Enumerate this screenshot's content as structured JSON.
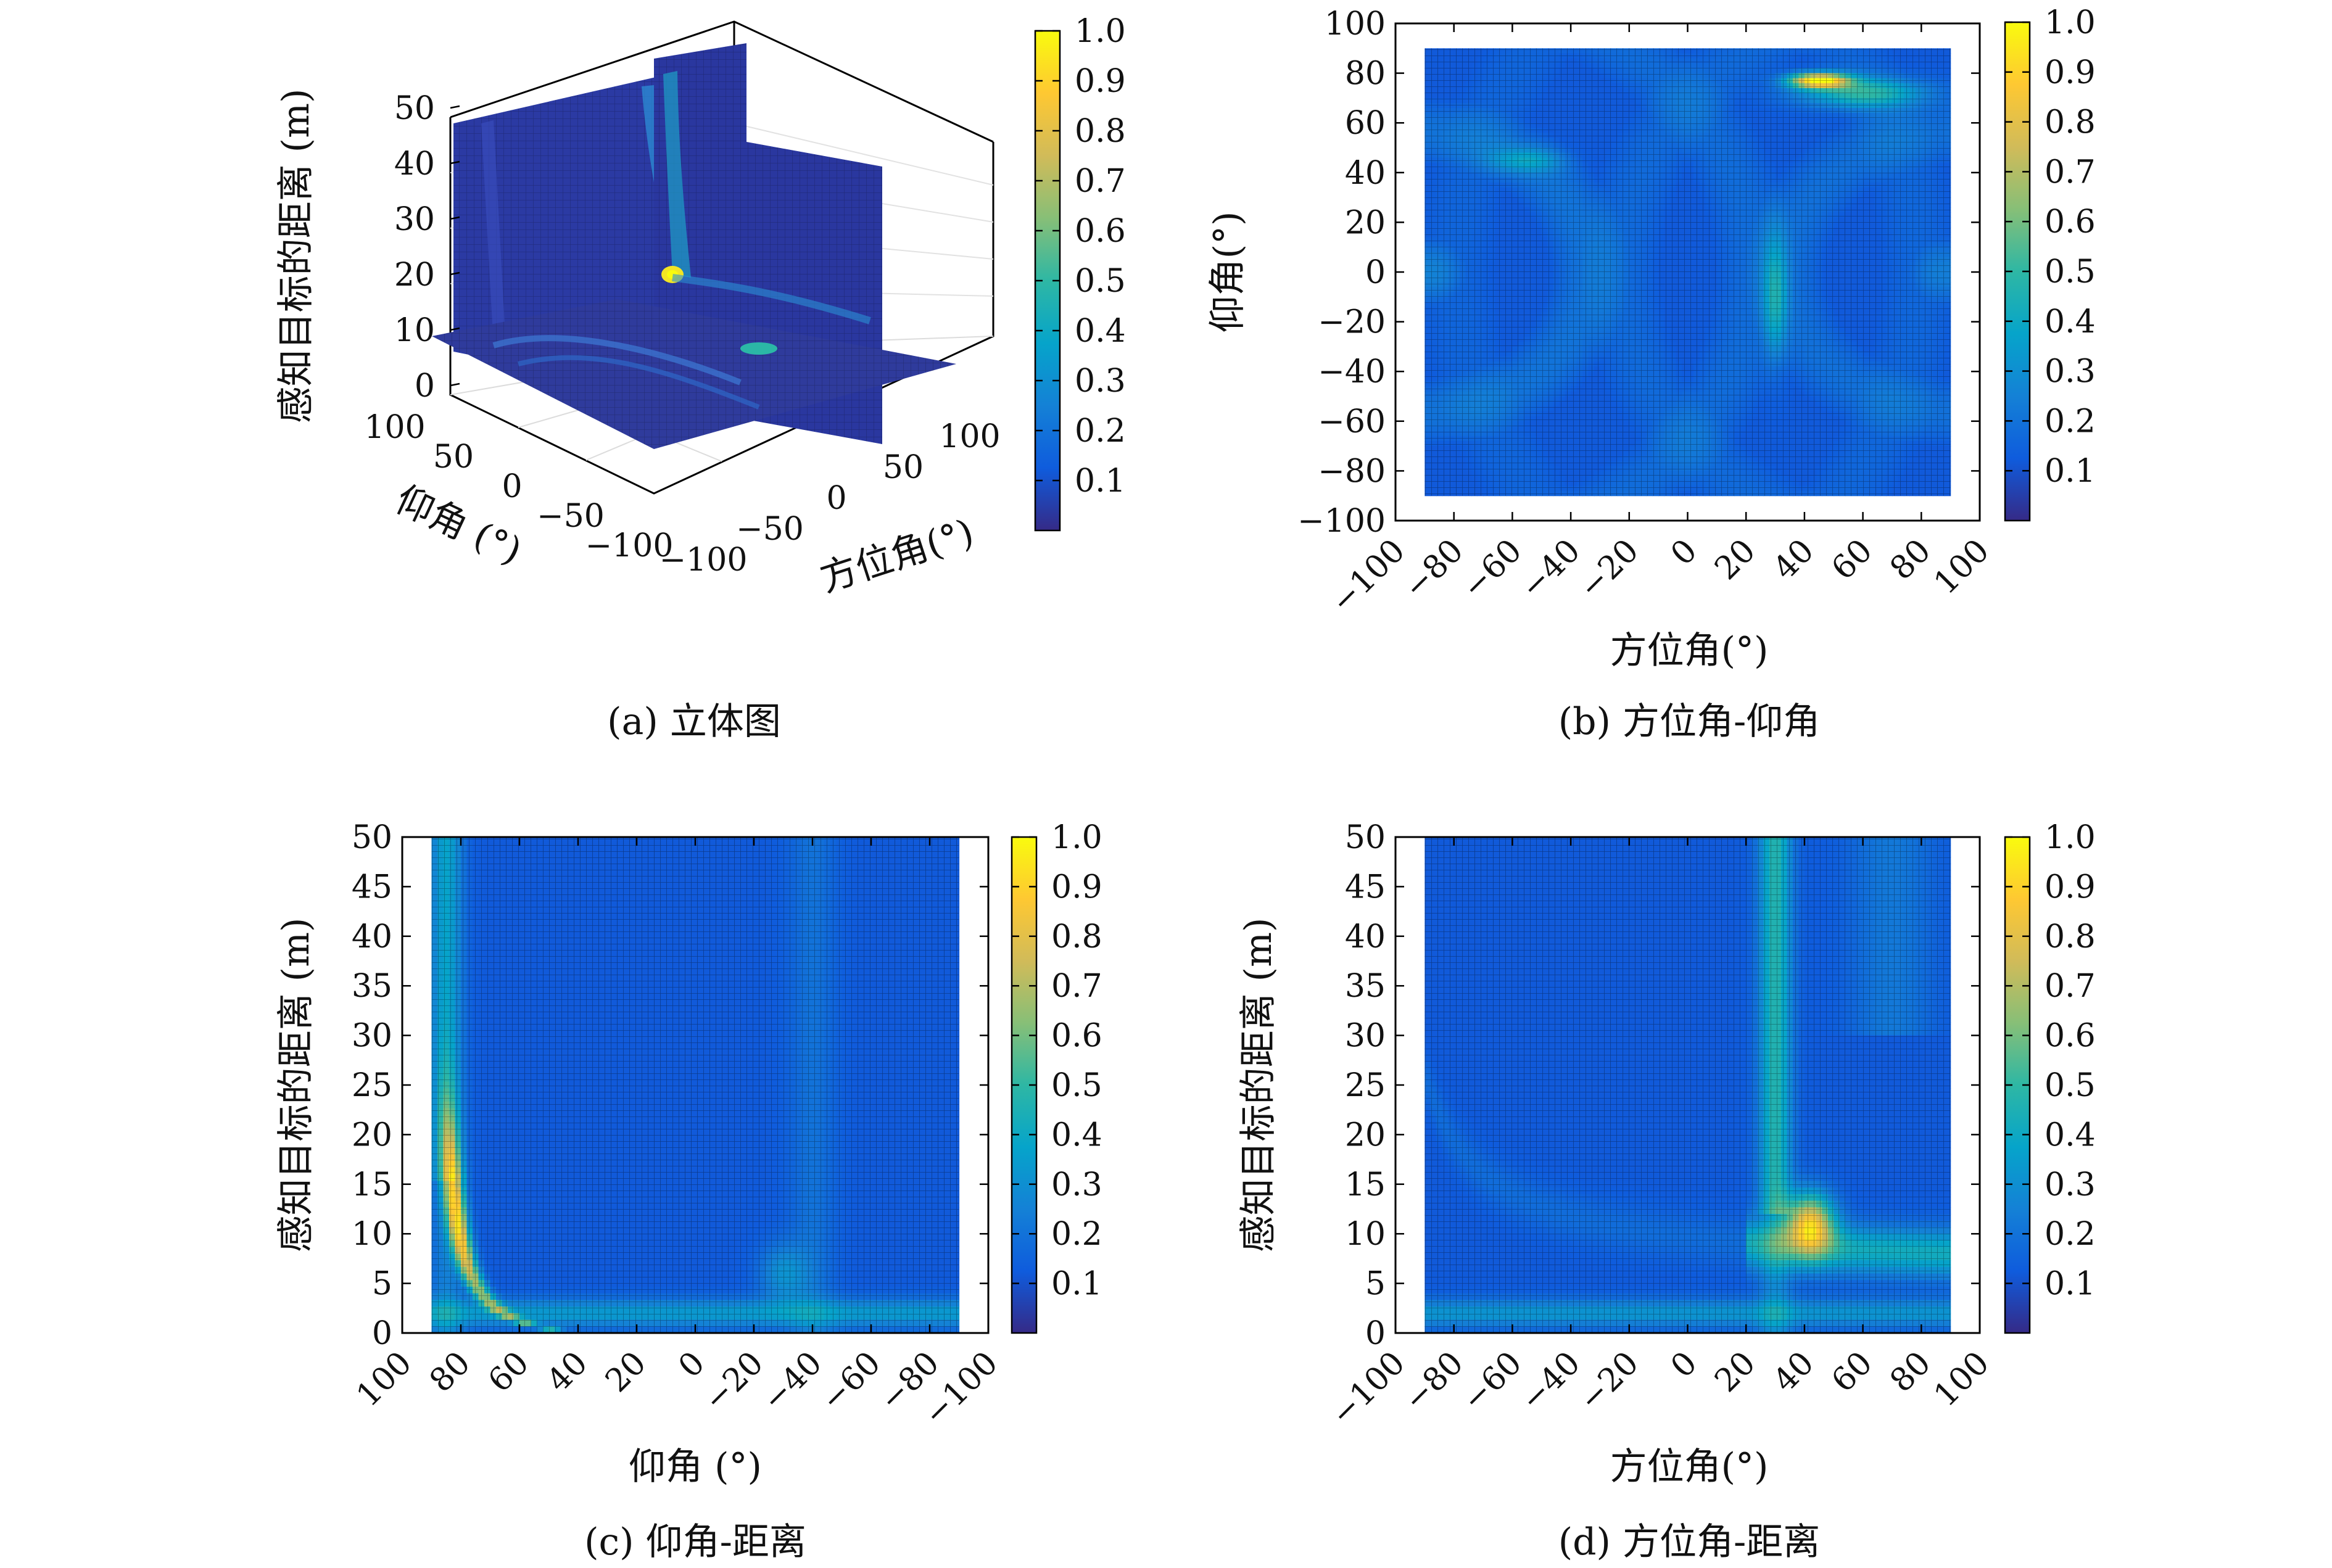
{
  "colors": {
    "colormap": [
      "#352a87",
      "#0f5cdd",
      "#1481d6",
      "#06a4ca",
      "#2eb7a4",
      "#87bf77",
      "#d1bb59",
      "#fec832",
      "#f9fb0e"
    ],
    "frame": "#000000",
    "grid": "#d9d9d9"
  },
  "chart_data": [
    {
      "id": "a",
      "type": "heatmap",
      "caption": "(a) 立体图",
      "xlabel": "方位角(°)",
      "ylabel": "仰角 (°)",
      "zlabel": "感知目标的距离 (m)",
      "x_ticks": [
        "−100",
        "−50",
        "0",
        "50",
        "100"
      ],
      "y_ticks": [
        "100",
        "50",
        "0",
        "−50",
        "−100"
      ],
      "z_ticks": [
        "0",
        "10",
        "20",
        "30",
        "40",
        "50"
      ],
      "xlim": [
        -100,
        100
      ],
      "ylim": [
        -100,
        100
      ],
      "zlim": [
        0,
        50
      ],
      "colorbar_ticks": [
        "1.0",
        "0.9",
        "0.8",
        "0.7",
        "0.6",
        "0.5",
        "0.4",
        "0.3",
        "0.2",
        "0.1"
      ],
      "colorbar_range": [
        0,
        1
      ],
      "slices": [
        "azimuth = 40°",
        "elevation = 20°",
        "distance = 10 m"
      ],
      "peak": {
        "azimuth": 40,
        "elevation": 20,
        "distance": 10,
        "value": 1.0
      }
    },
    {
      "id": "b",
      "type": "heatmap",
      "caption": "(b) 方位角-仰角",
      "xlabel": "方位角(°)",
      "ylabel": "仰角(°)",
      "x_ticks": [
        "−100",
        "−80",
        "−60",
        "−40",
        "−20",
        "0",
        "20",
        "40",
        "60",
        "80",
        "100"
      ],
      "y_ticks": [
        "100",
        "80",
        "60",
        "40",
        "20",
        "0",
        "−20",
        "−40",
        "−60",
        "−80",
        "−100"
      ],
      "xlim": [
        -100,
        100
      ],
      "ylim": [
        -100,
        100
      ],
      "data_extent": {
        "x": [
          -90,
          90
        ],
        "y": [
          -90,
          90
        ]
      },
      "colorbar_ticks": [
        "1.0",
        "0.9",
        "0.8",
        "0.7",
        "0.6",
        "0.5",
        "0.4",
        "0.3",
        "0.2",
        "0.1"
      ],
      "colorbar_range": [
        0,
        1
      ],
      "peak": {
        "azimuth": 45,
        "elevation": 77,
        "value": 0.95
      }
    },
    {
      "id": "c",
      "type": "heatmap",
      "caption": "(c) 仰角-距离",
      "xlabel": "仰角 (°)",
      "ylabel": "感知目标的距离 (m)",
      "x_ticks": [
        "100",
        "80",
        "60",
        "40",
        "20",
        "0",
        "−20",
        "−40",
        "−60",
        "−80",
        "−100"
      ],
      "y_ticks": [
        "50",
        "45",
        "40",
        "35",
        "30",
        "25",
        "20",
        "15",
        "10",
        "5",
        "0"
      ],
      "xlim": [
        100,
        -100
      ],
      "ylim": [
        0,
        50
      ],
      "data_extent": {
        "x": [
          90,
          -90
        ],
        "y": [
          0,
          50
        ]
      },
      "colorbar_ticks": [
        "1.0",
        "0.9",
        "0.8",
        "0.7",
        "0.6",
        "0.5",
        "0.4",
        "0.3",
        "0.2",
        "0.1"
      ],
      "colorbar_range": [
        0,
        1
      ],
      "peak": {
        "elevation": 80,
        "distance": 10,
        "value": 1.0
      }
    },
    {
      "id": "d",
      "type": "heatmap",
      "caption": "(d) 方位角-距离",
      "xlabel": "方位角(°)",
      "ylabel": "感知目标的距离 (m)",
      "x_ticks": [
        "−100",
        "−80",
        "−60",
        "−40",
        "−20",
        "0",
        "20",
        "40",
        "60",
        "80",
        "100"
      ],
      "y_ticks": [
        "50",
        "45",
        "40",
        "35",
        "30",
        "25",
        "20",
        "15",
        "10",
        "5",
        "0"
      ],
      "xlim": [
        -100,
        100
      ],
      "ylim": [
        0,
        50
      ],
      "data_extent": {
        "x": [
          -90,
          90
        ],
        "y": [
          0,
          50
        ]
      },
      "colorbar_ticks": [
        "1.0",
        "0.9",
        "0.8",
        "0.7",
        "0.6",
        "0.5",
        "0.4",
        "0.3",
        "0.2",
        "0.1"
      ],
      "colorbar_range": [
        0,
        1
      ],
      "peak": {
        "azimuth": 42,
        "distance": 11,
        "value": 0.95
      }
    }
  ]
}
